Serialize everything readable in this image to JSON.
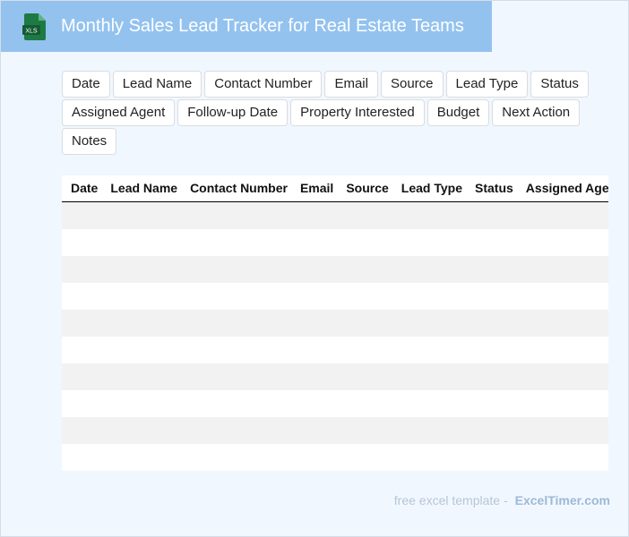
{
  "header": {
    "icon_label": "XLS",
    "title": "Monthly Sales Lead Tracker for Real Estate Teams"
  },
  "tags": [
    "Date",
    "Lead Name",
    "Contact Number",
    "Email",
    "Source",
    "Lead Type",
    "Status",
    "Assigned Agent",
    "Follow-up Date",
    "Property Interested",
    "Budget",
    "Next Action",
    "Notes"
  ],
  "table": {
    "columns": [
      "Date",
      "Lead Name",
      "Contact Number",
      "Email",
      "Source",
      "Lead Type",
      "Status",
      "Assigned Agent"
    ]
  },
  "footer": {
    "text": "free excel template -",
    "brand": "ExcelTimer.com"
  }
}
